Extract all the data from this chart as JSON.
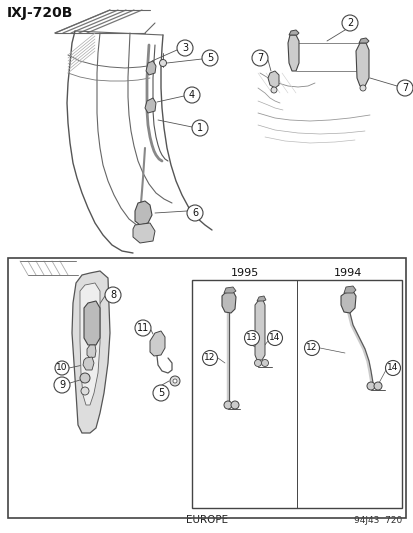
{
  "title": "IXJ-720B",
  "bg_color": "#ffffff",
  "footer_left": "EUROPE",
  "footer_right": "94J43  720",
  "year_1995": "1995",
  "year_1994": "1994",
  "lc": "#555555",
  "circle_fill": "#ffffff",
  "circle_edge": "#444444",
  "part_fill": "#cccccc",
  "part_edge": "#444444"
}
